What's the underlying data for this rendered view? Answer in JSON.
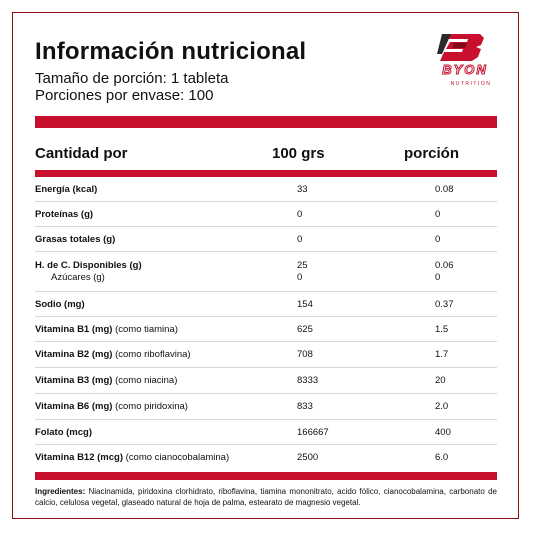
{
  "header": {
    "title": "Información nutricional",
    "serving_size": "Tamaño de porción: 1 tableta",
    "servings": "Porciones por envase: 100"
  },
  "logo": {
    "brand": "BYON",
    "tagline": "NUTRITION",
    "color": "#c8102e"
  },
  "table": {
    "columns": [
      "Cantidad por",
      "100 grs",
      "porción"
    ],
    "rows": [
      {
        "name_bold": "Energía (kcal)",
        "name_extra": "",
        "v100": "33",
        "vpor": "0.08"
      },
      {
        "name_bold": "Proteínas (g)",
        "name_extra": "",
        "v100": "0",
        "vpor": "0"
      },
      {
        "name_bold": "Grasas totales (g)",
        "name_extra": "",
        "v100": "0",
        "vpor": "0"
      },
      {
        "name_bold": "H. de C. Disponibles (g)",
        "name_extra": "",
        "v100": "25",
        "vpor": "0.06",
        "sub_name": "Azúcares (g)",
        "sub_v100": "0",
        "sub_vpor": "0"
      },
      {
        "name_bold": "Sodio (mg)",
        "name_extra": "",
        "v100": "154",
        "vpor": "0.37"
      },
      {
        "name_bold": "Vitamina B1 (mg)",
        "name_extra": " (como tiamina)",
        "v100": "625",
        "vpor": "1.5"
      },
      {
        "name_bold": "Vitamina B2 (mg)",
        "name_extra": " (como riboflavina)",
        "v100": "708",
        "vpor": "1.7"
      },
      {
        "name_bold": "Vitamina B3 (mg)",
        "name_extra": " (como niacina)",
        "v100": "8333",
        "vpor": "20"
      },
      {
        "name_bold": "Vitamina B6 (mg)",
        "name_extra": " (como piridoxina)",
        "v100": "833",
        "vpor": "2.0"
      },
      {
        "name_bold": "Folato (mcg)",
        "name_extra": "",
        "v100": "166667",
        "vpor": "400"
      },
      {
        "name_bold": "Vitamina B12 (mcg)",
        "name_extra": " (como cianocobalamina)",
        "v100": "2500",
        "vpor": "6.0"
      }
    ]
  },
  "ingredients": {
    "label": "Ingredientes:",
    "text": " Niacinamida, piridoxina clorhidrato, riboflavina, tiamina mononitrato, acido fólico, cianocobalamina, carbonato de calcio, celulosa vegetal, glaseado natural de hoja de palma, estearato de magnesio vegetal."
  }
}
